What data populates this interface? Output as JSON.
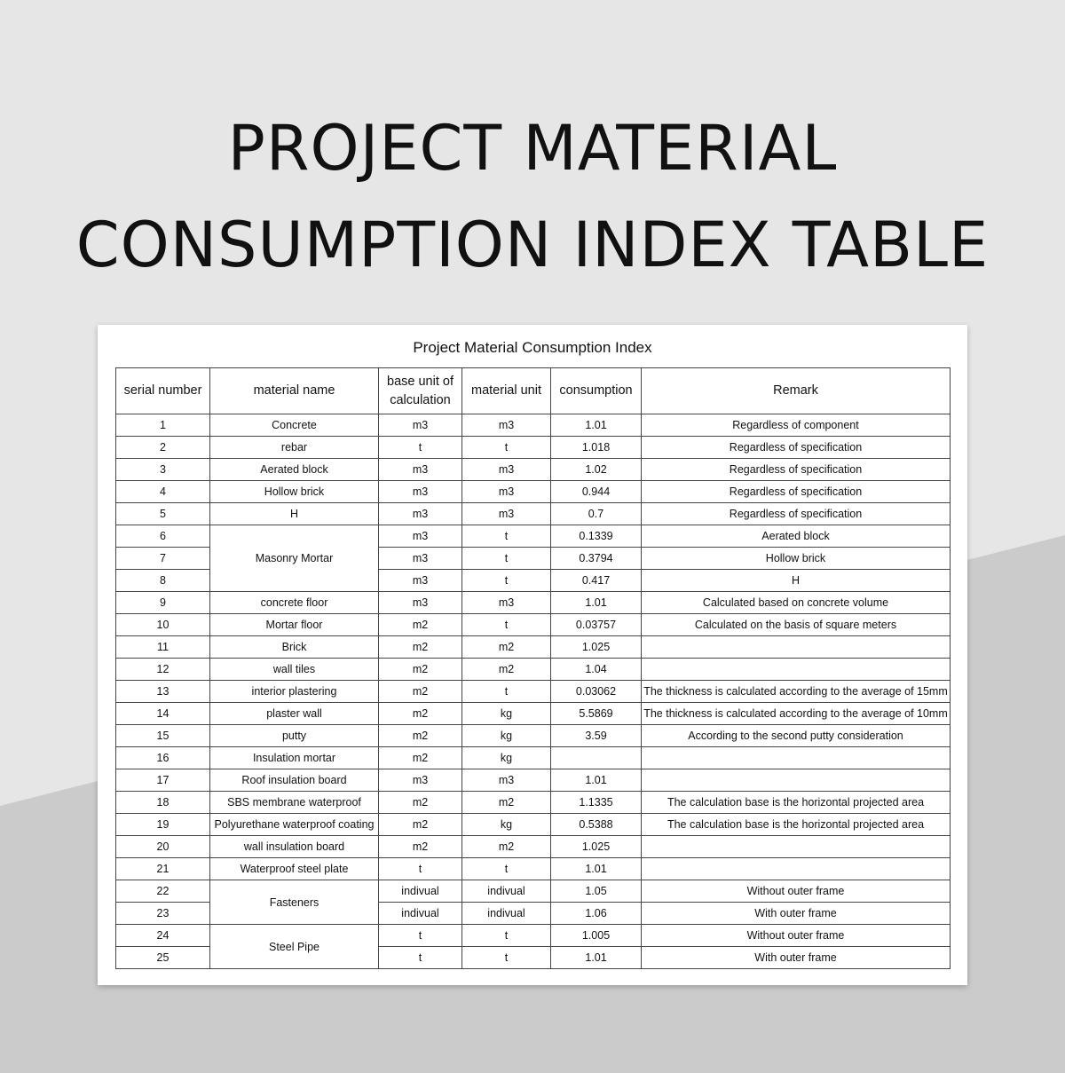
{
  "page": {
    "heading_line1": "PROJECT MATERIAL",
    "heading_line2": "CONSUMPTION INDEX TABLE"
  },
  "sheet": {
    "title": "Project Material Consumption Index",
    "headers": [
      "serial number",
      "material name",
      "base unit of calculation",
      "material unit",
      "consumption",
      "Remark"
    ],
    "rows": [
      {
        "serial": "1",
        "material": "Concrete",
        "base_unit": "m3",
        "unit": "m3",
        "consumption": "1.01",
        "remark": "Regardless of component"
      },
      {
        "serial": "2",
        "material": "rebar",
        "base_unit": "t",
        "unit": "t",
        "consumption": "1.018",
        "remark": "Regardless of specification"
      },
      {
        "serial": "3",
        "material": "Aerated block",
        "base_unit": "m3",
        "unit": "m3",
        "consumption": "1.02",
        "remark": "Regardless of specification"
      },
      {
        "serial": "4",
        "material": "Hollow brick",
        "base_unit": "m3",
        "unit": "m3",
        "consumption": "0.944",
        "remark": "Regardless of specification"
      },
      {
        "serial": "5",
        "material": "H",
        "base_unit": "m3",
        "unit": "m3",
        "consumption": "0.7",
        "remark": "Regardless of specification"
      },
      {
        "serial": "6",
        "material": "Masonry Mortar",
        "material_rowspan": 3,
        "base_unit": "m3",
        "unit": "t",
        "consumption": "0.1339",
        "remark": "Aerated block"
      },
      {
        "serial": "7",
        "material_merged": true,
        "base_unit": "m3",
        "unit": "t",
        "consumption": "0.3794",
        "remark": "Hollow brick"
      },
      {
        "serial": "8",
        "material_merged": true,
        "base_unit": "m3",
        "unit": "t",
        "consumption": "0.417",
        "remark": "H"
      },
      {
        "serial": "9",
        "material": "concrete floor",
        "base_unit": "m3",
        "unit": "m3",
        "consumption": "1.01",
        "remark": "Calculated based on concrete volume"
      },
      {
        "serial": "10",
        "material": "Mortar floor",
        "base_unit": "m2",
        "unit": "t",
        "consumption": "0.03757",
        "remark": "Calculated on the basis of square meters"
      },
      {
        "serial": "11",
        "material": "Brick",
        "base_unit": "m2",
        "unit": "m2",
        "consumption": "1.025",
        "remark": ""
      },
      {
        "serial": "12",
        "material": "wall tiles",
        "base_unit": "m2",
        "unit": "m2",
        "consumption": "1.04",
        "remark": ""
      },
      {
        "serial": "13",
        "material": "interior plastering",
        "base_unit": "m2",
        "unit": "t",
        "consumption": "0.03062",
        "remark": "The thickness is calculated according to the average of 15mm"
      },
      {
        "serial": "14",
        "material": "plaster wall",
        "base_unit": "m2",
        "unit": "kg",
        "consumption": "5.5869",
        "remark": "The thickness is calculated according to the average of 10mm"
      },
      {
        "serial": "15",
        "material": "putty",
        "base_unit": "m2",
        "unit": "kg",
        "consumption": "3.59",
        "remark": "According to the second putty consideration"
      },
      {
        "serial": "16",
        "material": "Insulation mortar",
        "base_unit": "m2",
        "unit": "kg",
        "consumption": "",
        "remark": ""
      },
      {
        "serial": "17",
        "material": "Roof insulation board",
        "base_unit": "m3",
        "unit": "m3",
        "consumption": "1.01",
        "remark": ""
      },
      {
        "serial": "18",
        "material": "SBS membrane waterproof",
        "base_unit": "m2",
        "unit": "m2",
        "consumption": "1.1335",
        "remark": "The calculation base is the horizontal projected area"
      },
      {
        "serial": "19",
        "material": "Polyurethane waterproof coating",
        "base_unit": "m2",
        "unit": "kg",
        "consumption": "0.5388",
        "remark": "The calculation base is the horizontal projected area"
      },
      {
        "serial": "20",
        "material": "wall insulation board",
        "base_unit": "m2",
        "unit": "m2",
        "consumption": "1.025",
        "remark": ""
      },
      {
        "serial": "21",
        "material": "Waterproof steel plate",
        "base_unit": "t",
        "unit": "t",
        "consumption": "1.01",
        "remark": ""
      },
      {
        "serial": "22",
        "material": "Fasteners",
        "material_rowspan": 2,
        "base_unit": "indivual",
        "unit": "indivual",
        "consumption": "1.05",
        "remark": "Without outer frame"
      },
      {
        "serial": "23",
        "material_merged": true,
        "base_unit": "indivual",
        "unit": "indivual",
        "consumption": "1.06",
        "remark": "With outer frame"
      },
      {
        "serial": "24",
        "material": "Steel Pipe",
        "material_rowspan": 2,
        "base_unit": "t",
        "unit": "t",
        "consumption": "1.005",
        "remark": "Without outer frame"
      },
      {
        "serial": "25",
        "material_merged": true,
        "base_unit": "t",
        "unit": "t",
        "consumption": "1.01",
        "remark": "With outer frame"
      }
    ]
  }
}
